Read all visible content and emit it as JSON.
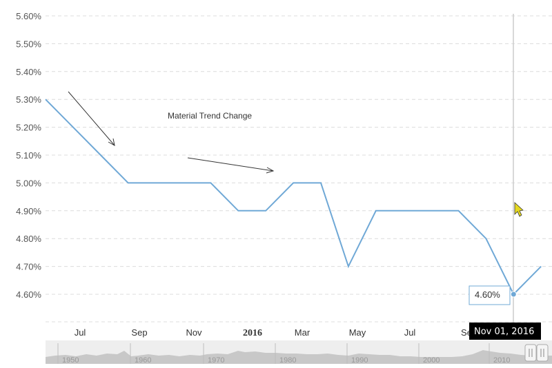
{
  "chart_data": {
    "type": "line",
    "x": [
      "2015-06-01",
      "2015-07-01",
      "2015-08-01",
      "2015-09-01",
      "2015-10-01",
      "2015-11-01",
      "2015-12-01",
      "2016-01-01",
      "2016-02-01",
      "2016-03-01",
      "2016-04-01",
      "2016-05-01",
      "2016-06-01",
      "2016-07-01",
      "2016-08-01",
      "2016-09-01",
      "2016-10-01",
      "2016-11-01",
      "2016-12-01"
    ],
    "series": [
      {
        "name": "",
        "values": [
          5.3,
          5.2,
          5.1,
          5.0,
          5.0,
          5.0,
          5.0,
          4.9,
          4.9,
          5.0,
          5.0,
          4.7,
          4.9,
          4.9,
          4.9,
          4.9,
          4.8,
          4.6,
          4.7
        ]
      }
    ],
    "ylim": [
      4.5,
      5.6
    ],
    "yticks": [
      "5.60%",
      "5.50%",
      "5.40%",
      "5.30%",
      "5.20%",
      "5.10%",
      "5.00%",
      "4.90%",
      "4.80%",
      "4.70%",
      "4.60%"
    ],
    "xticks": [
      {
        "label": "Jul",
        "bold": false
      },
      {
        "label": "Sep",
        "bold": false
      },
      {
        "label": "Nov",
        "bold": false
      },
      {
        "label": "2016",
        "bold": true
      },
      {
        "label": "Mar",
        "bold": false
      },
      {
        "label": "May",
        "bold": false
      },
      {
        "label": "Jul",
        "bold": false
      },
      {
        "label": "Se",
        "bold": false
      }
    ],
    "grid": true,
    "line_color": "#6fa8d6",
    "annotation": "Material Trend Change",
    "tooltip": {
      "value": "4.60%",
      "date": "Nov 01, 2016"
    },
    "navigator": {
      "labels": [
        "1950",
        "1960",
        "1970",
        "1980",
        "1990",
        "2000",
        "2010"
      ]
    }
  }
}
